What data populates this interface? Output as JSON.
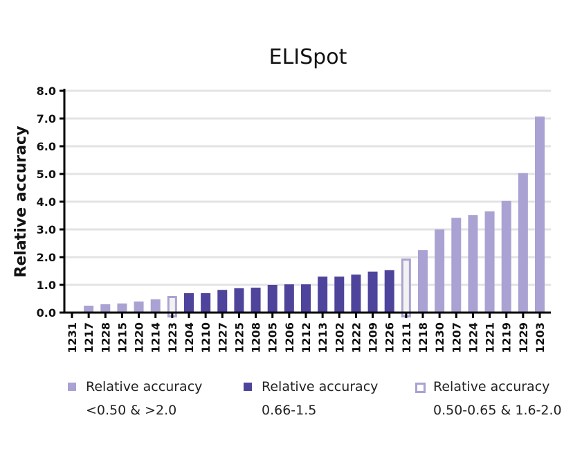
{
  "chart_data": {
    "type": "bar",
    "title": "ELISpot",
    "xlabel": "",
    "ylabel": "Relative accuracy",
    "ylim": [
      0,
      8
    ],
    "yticks": [
      "0.0",
      "1.0",
      "2.0",
      "3.0",
      "4.0",
      "5.0",
      "6.0",
      "7.0",
      "8.0"
    ],
    "grid": true,
    "categories": [
      "1231",
      "1217",
      "1228",
      "1215",
      "1220",
      "1214",
      "1223",
      "1204",
      "1210",
      "1227",
      "1225",
      "1208",
      "1205",
      "1206",
      "1212",
      "1213",
      "1202",
      "1222",
      "1209",
      "1226",
      "1211",
      "1218",
      "1230",
      "1207",
      "1224",
      "1221",
      "1219",
      "1229",
      "1203"
    ],
    "values": [
      0,
      0.25,
      0.3,
      0.33,
      0.4,
      0.48,
      0.6,
      0.7,
      0.7,
      0.82,
      0.88,
      0.9,
      1.0,
      1.02,
      1.02,
      1.3,
      1.3,
      1.37,
      1.48,
      1.53,
      1.95,
      2.25,
      3.0,
      3.42,
      3.52,
      3.65,
      4.03,
      5.03,
      7.07
    ],
    "groups": [
      "out",
      "out",
      "out",
      "out",
      "out",
      "out",
      "mid",
      "in",
      "in",
      "in",
      "in",
      "in",
      "in",
      "in",
      "in",
      "in",
      "in",
      "in",
      "in",
      "in",
      "mid",
      "out",
      "out",
      "out",
      "out",
      "out",
      "out",
      "out",
      "out"
    ],
    "legend_position": "bottom",
    "legend": [
      {
        "key": "out",
        "line1": "Relative accuracy",
        "line2": "<0.50 & >2.0",
        "color": "#a9a2d2"
      },
      {
        "key": "in",
        "line1": "Relative accuracy",
        "line2": "0.66-1.5",
        "color": "#4e449c"
      },
      {
        "key": "mid",
        "line1": "Relative accuracy",
        "line2": "0.50-0.65 & 1.6-2.0",
        "color": "#a9a2d2"
      }
    ]
  }
}
